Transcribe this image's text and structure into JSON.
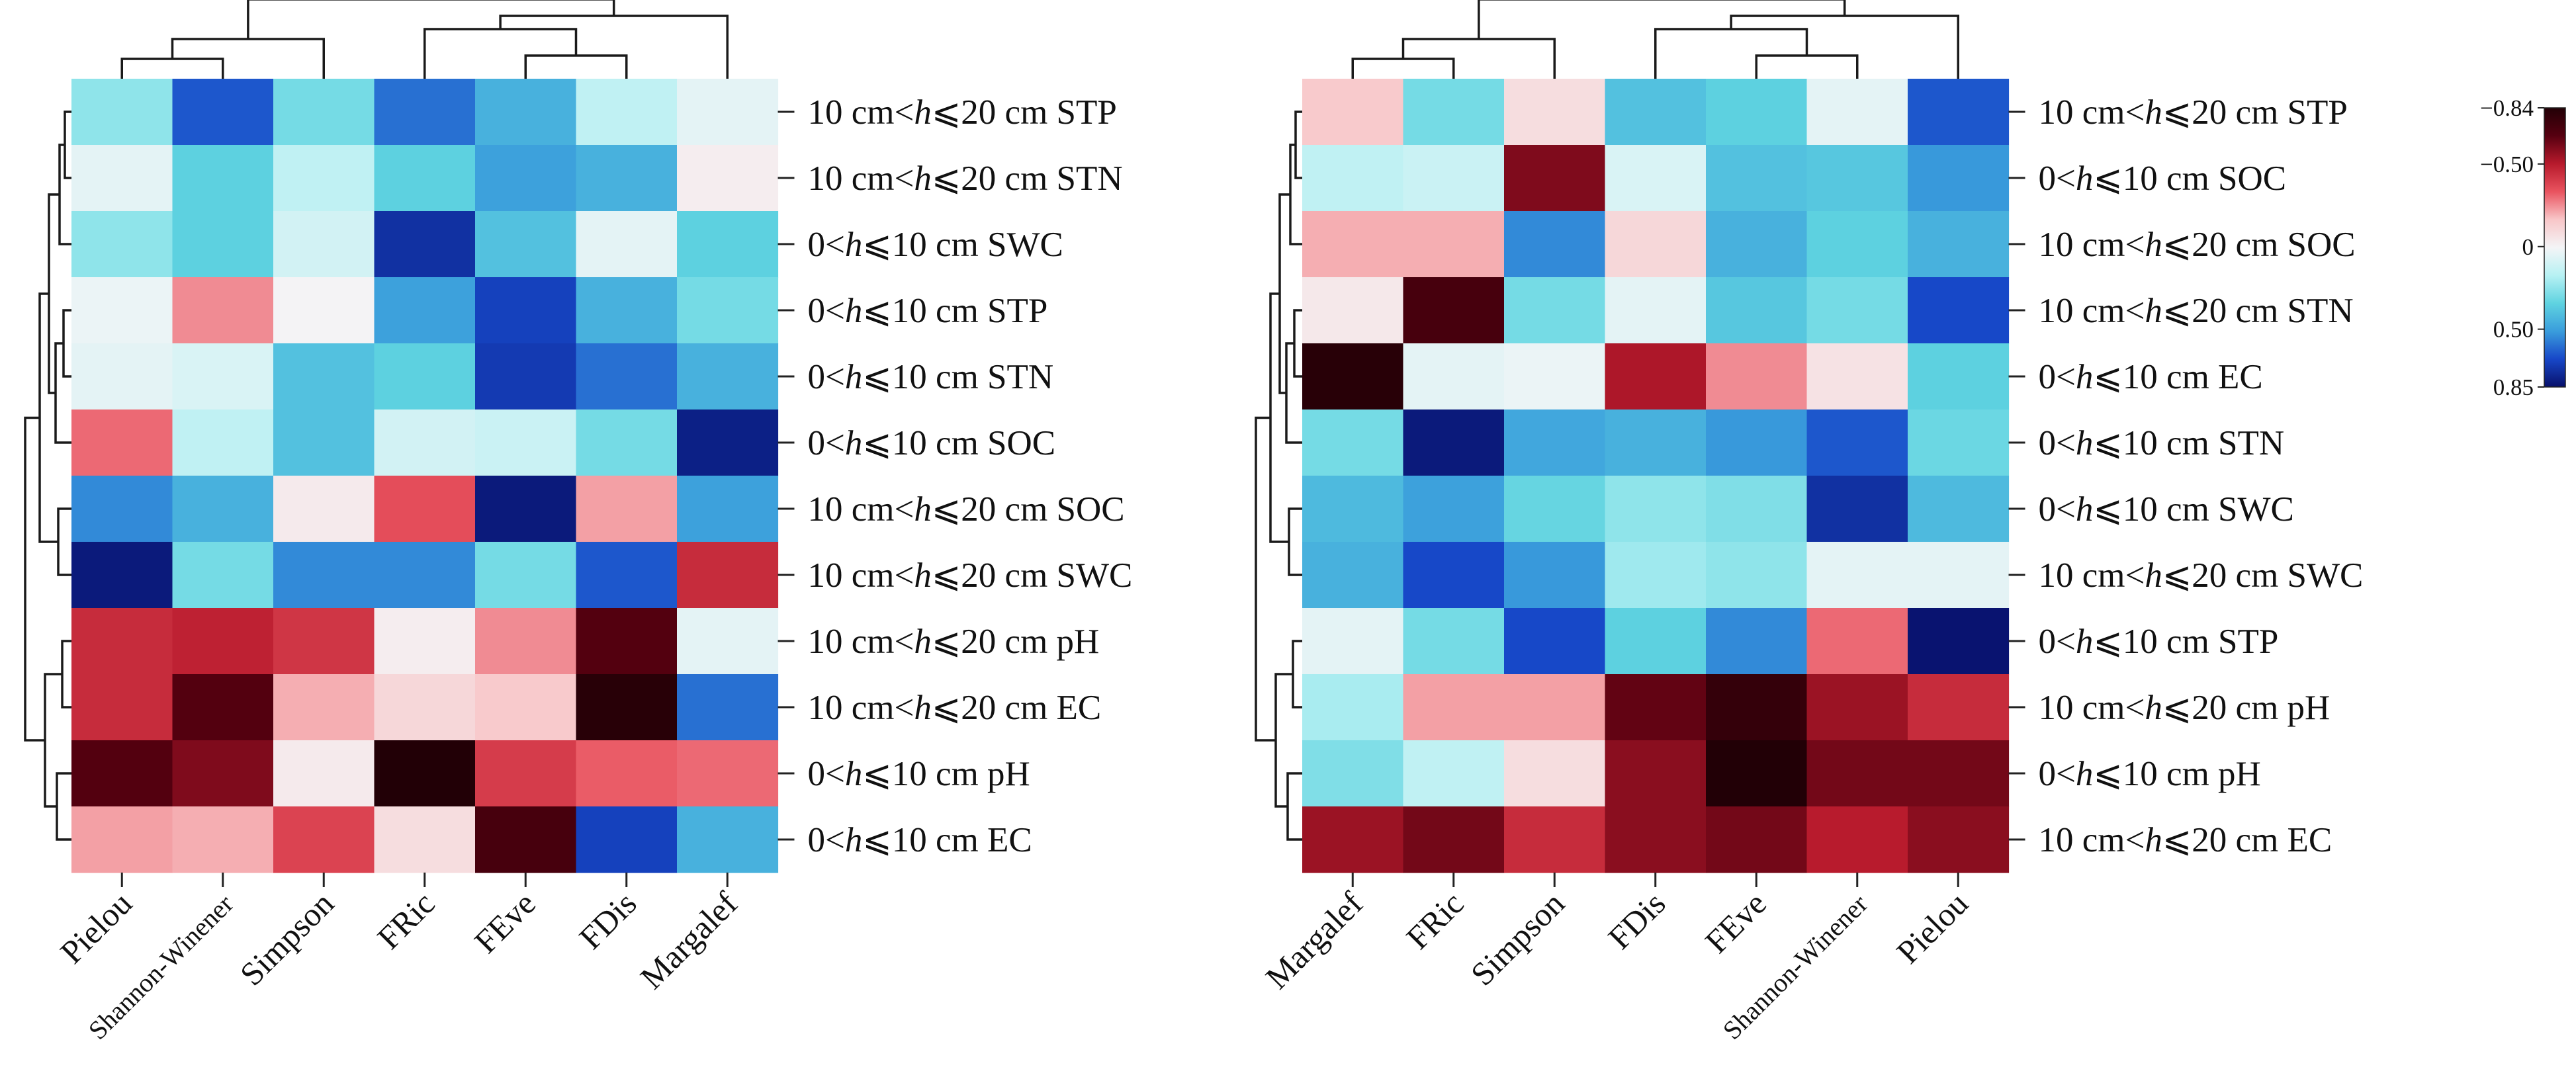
{
  "colors": {
    "scale": [
      "#08106a",
      "#1747c8",
      "#3a9ddc",
      "#5fd3e0",
      "#b7f1f3",
      "#f4f4f6",
      "#f8c6c8",
      "#e9535f",
      "#b71a2c",
      "#560010",
      "#220006"
    ]
  },
  "colorbar": {
    "ticks": [
      {
        "label": "−0.84",
        "value": -0.84
      },
      {
        "label": "−0.50",
        "value": -0.5
      },
      {
        "label": "0",
        "value": 0
      },
      {
        "label": "0.50",
        "value": 0.5
      },
      {
        "label": "0.85",
        "value": 0.85
      }
    ]
  },
  "chart_data": [
    {
      "type": "heatmap",
      "title": "",
      "dendrograms": {
        "rows": true,
        "columns": true
      },
      "columns": [
        "Pielou",
        "Shannon-Winener",
        "Simpson",
        "FRic",
        "FEve",
        "FDis",
        "Margalef"
      ],
      "rows": [
        "10 cm<h⩽20 cm STP",
        "10 cm<h⩽20 cm STN",
        "0<h⩽10 cm SWC",
        "0<h⩽10 cm STP",
        "0<h⩽10 cm STN",
        "0<h⩽10 cm SOC",
        "10 cm<h⩽20 cm SOC",
        "10 cm<h⩽20 cm SWC",
        "10 cm<h⩽20 cm pH",
        "10 cm<h⩽20 cm EC",
        "0<h⩽10 cm pH",
        "0<h⩽10 cm EC"
      ],
      "values": [
        [
          0.25,
          0.65,
          0.3,
          0.6,
          0.45,
          0.15,
          0.05
        ],
        [
          0.05,
          0.35,
          0.15,
          0.35,
          0.5,
          0.45,
          -0.02
        ],
        [
          0.25,
          0.35,
          0.1,
          0.75,
          0.4,
          0.05,
          0.35
        ],
        [
          0.03,
          -0.25,
          0.0,
          0.5,
          0.7,
          0.45,
          0.3
        ],
        [
          0.05,
          0.08,
          0.4,
          0.35,
          0.72,
          0.6,
          0.45
        ],
        [
          -0.3,
          0.15,
          0.4,
          0.1,
          0.12,
          0.3,
          0.8
        ],
        [
          0.55,
          0.45,
          -0.03,
          -0.35,
          0.82,
          -0.22,
          0.5
        ],
        [
          0.82,
          0.3,
          0.55,
          0.55,
          0.3,
          0.65,
          -0.45
        ],
        [
          -0.45,
          -0.48,
          -0.42,
          -0.02,
          -0.25,
          -0.68,
          0.05
        ],
        [
          -0.45,
          -0.68,
          -0.2,
          -0.1,
          -0.15,
          -0.82,
          0.6
        ],
        [
          -0.68,
          -0.6,
          -0.03,
          -0.84,
          -0.4,
          -0.32,
          -0.3
        ],
        [
          -0.22,
          -0.2,
          -0.38,
          -0.08,
          -0.72,
          0.7,
          0.45
        ]
      ]
    },
    {
      "type": "heatmap",
      "title": "",
      "dendrograms": {
        "rows": true,
        "columns": true
      },
      "columns": [
        "Margalef",
        "FRic",
        "Simpson",
        "FDis",
        "FEve",
        "Shannon-Winener",
        "Pielou"
      ],
      "rows": [
        "10 cm<h⩽20 cm STP",
        "0<h⩽10 cm SOC",
        "10 cm<h⩽20 cm SOC",
        "10 cm<h⩽20 cm STN",
        "0<h⩽10 cm EC",
        "0<h⩽10 cm STN",
        "0<h⩽10 cm SWC",
        "10 cm<h⩽20 cm SWC",
        "0<h⩽10 cm STP",
        "10 cm<h⩽20 cm pH",
        "0<h⩽10 cm pH",
        "10 cm<h⩽20 cm EC"
      ],
      "values": [
        [
          -0.15,
          0.3,
          -0.08,
          0.4,
          0.35,
          0.05,
          0.65
        ],
        [
          0.15,
          0.12,
          -0.6,
          0.08,
          0.4,
          0.38,
          0.52
        ],
        [
          -0.2,
          -0.2,
          0.55,
          -0.1,
          0.45,
          0.35,
          0.45
        ],
        [
          -0.04,
          -0.72,
          0.3,
          0.05,
          0.38,
          0.3,
          0.68
        ],
        [
          -0.82,
          0.05,
          0.03,
          -0.52,
          -0.25,
          -0.06,
          0.35
        ],
        [
          0.3,
          0.82,
          0.48,
          0.45,
          0.52,
          0.65,
          0.32
        ],
        [
          0.42,
          0.5,
          0.33,
          0.25,
          0.28,
          0.75,
          0.42
        ],
        [
          0.45,
          0.68,
          0.52,
          0.22,
          0.25,
          0.05,
          0.05
        ],
        [
          0.05,
          0.3,
          0.68,
          0.35,
          0.55,
          -0.3,
          0.84
        ],
        [
          0.2,
          -0.22,
          -0.22,
          -0.65,
          -0.78,
          -0.55,
          -0.45
        ],
        [
          0.28,
          0.15,
          -0.08,
          -0.58,
          -0.84,
          -0.62,
          -0.62
        ],
        [
          -0.55,
          -0.62,
          -0.45,
          -0.58,
          -0.62,
          -0.5,
          -0.58
        ]
      ]
    }
  ]
}
